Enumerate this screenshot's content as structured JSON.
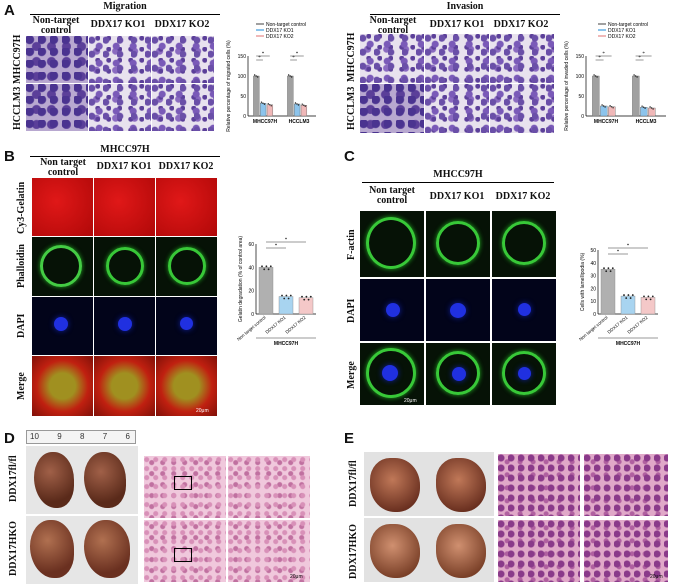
{
  "panelA": {
    "label": "A",
    "migration": {
      "title": "Migration",
      "headers": [
        "Non-target control",
        "DDX17 KO1",
        "DDX17 KO2"
      ],
      "rows": [
        "MHCC97H",
        "HCCLM3"
      ],
      "chart_data": {
        "type": "bar",
        "legend": [
          "Non-target control",
          "DDX17 KO1",
          "DDX17 KO2"
        ],
        "categories": [
          "MHCC97H",
          "HCCLM3"
        ],
        "ylabel": "Relative percentage of migrated cells (%)",
        "ylim": [
          0,
          150
        ],
        "yticks": [
          "0",
          "50",
          "100",
          "150"
        ],
        "series": [
          {
            "name": "Non-target control",
            "values": [
              100,
              100
            ]
          },
          {
            "name": "DDX17 KO1",
            "values": [
              32,
              30
            ]
          },
          {
            "name": "DDX17 KO2",
            "values": [
              28,
              27
            ]
          }
        ],
        "sig": [
          "*",
          "*",
          "*",
          "*"
        ]
      }
    },
    "invasion": {
      "title": "Invasion",
      "headers": [
        "Non-target control",
        "DDX17 KO1",
        "DDX17 KO2"
      ],
      "rows": [
        "MHCC97H",
        "HCCLM3"
      ],
      "chart_data": {
        "type": "bar",
        "legend": [
          "Non-target control",
          "DDX17 KO1",
          "DDX17 KO2"
        ],
        "categories": [
          "MHCC97H",
          "HCCLM3"
        ],
        "ylabel": "Relative percentage of invaded cells (%)",
        "ylim": [
          0,
          150
        ],
        "yticks": [
          "0",
          "50",
          "100",
          "150"
        ],
        "series": [
          {
            "name": "Non-target control",
            "values": [
              100,
              100
            ]
          },
          {
            "name": "DDX17 KO1",
            "values": [
              25,
              22
            ]
          },
          {
            "name": "DDX17 KO2",
            "values": [
              23,
              20
            ]
          }
        ],
        "sig": [
          "*",
          "*",
          "*",
          "*"
        ]
      }
    }
  },
  "panelB": {
    "label": "B",
    "title": "MHCC97H",
    "headers": [
      "Non target control",
      "DDX17 KO1",
      "DDX17 KO2"
    ],
    "rows": [
      "Cy3-Gelatin",
      "Phalloidin",
      "DAPI",
      "Merge"
    ],
    "scalebar": "20μm",
    "chart_data": {
      "type": "bar",
      "categories": [
        "Non target control",
        "DDX17 KO1",
        "DDX17 KO2"
      ],
      "xlabel": "MHCC97H",
      "ylabel": "Gelatin degradation (% of control area)",
      "ylim": [
        0,
        60
      ],
      "yticks": [
        "0",
        "20",
        "40",
        "60"
      ],
      "values": [
        40,
        15,
        14
      ],
      "colors": [
        "#b0b0b0",
        "#a8d4f0",
        "#f4c8c8"
      ],
      "sig": [
        "*",
        "*"
      ]
    }
  },
  "panelC": {
    "label": "C",
    "title": "MHCC97H",
    "headers": [
      "Non target control",
      "DDX17 KO1",
      "DDX17 KO2"
    ],
    "rows": [
      "F-actin",
      "DAPI",
      "Merge"
    ],
    "scalebar": "20μm",
    "chart_data": {
      "type": "bar",
      "categories": [
        "Non target control",
        "DDX17 KO1",
        "DDX17 KO2"
      ],
      "xlabel": "MHCC97H",
      "ylabel": "Cells with lamellipodia (%)",
      "ylim": [
        0,
        50
      ],
      "yticks": [
        "0",
        "10",
        "20",
        "30",
        "40",
        "50"
      ],
      "values": [
        35,
        14,
        13
      ],
      "colors": [
        "#b0b0b0",
        "#a8d4f0",
        "#f4c8c8"
      ],
      "sig": [
        "*",
        "*"
      ]
    }
  },
  "panelD": {
    "label": "D",
    "rows": [
      "DDX17fl/fl",
      "DDX17HKO"
    ],
    "ruler": [
      "10",
      "9",
      "8",
      "7",
      "6"
    ],
    "scalebar": "20μm"
  },
  "panelE": {
    "label": "E",
    "rows": [
      "DDX17fl/fl",
      "DDX17HKO"
    ],
    "scalebar": "20μm"
  }
}
